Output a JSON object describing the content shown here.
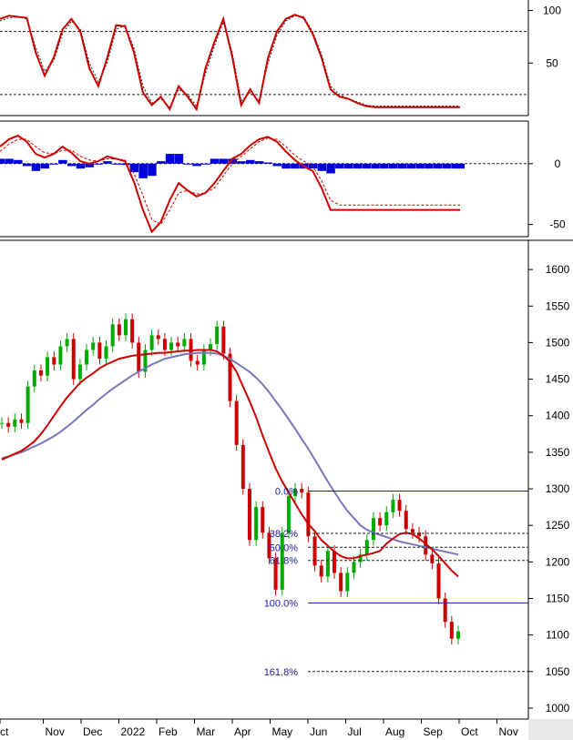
{
  "chart_data": [
    {
      "panel": "stochastic",
      "type": "line",
      "ylim": [
        0,
        110
      ],
      "yticks": [
        50,
        100
      ],
      "reference_lines": [
        20,
        80
      ],
      "colors": {
        "main": "#cc0000",
        "signal": "#222222"
      },
      "x": [
        0,
        4,
        8,
        12,
        16,
        20,
        24,
        28,
        32,
        36,
        40,
        44,
        48,
        52,
        56,
        60,
        64,
        68,
        72,
        76,
        80,
        84,
        88,
        92,
        96,
        100,
        104,
        108,
        112,
        116,
        120,
        124,
        128,
        132,
        136,
        140,
        144,
        148,
        152,
        156,
        160,
        164,
        168,
        172,
        176,
        180,
        184,
        188,
        192,
        196,
        200,
        204,
        206
      ],
      "values": [
        92,
        95,
        94,
        93,
        60,
        38,
        55,
        82,
        92,
        80,
        45,
        28,
        55,
        86,
        85,
        60,
        22,
        10,
        18,
        6,
        28,
        18,
        6,
        45,
        70,
        92,
        56,
        10,
        25,
        12,
        55,
        80,
        92,
        96,
        93,
        78,
        55,
        25,
        18,
        16,
        12,
        9,
        8,
        8,
        8,
        8,
        8,
        8,
        8,
        8,
        8,
        8,
        8
      ],
      "signal": [
        90,
        93,
        94,
        92,
        65,
        42,
        52,
        78,
        90,
        82,
        50,
        32,
        50,
        82,
        86,
        64,
        28,
        12,
        16,
        8,
        25,
        20,
        9,
        40,
        66,
        89,
        60,
        14,
        22,
        14,
        50,
        76,
        90,
        95,
        94,
        80,
        58,
        28,
        20,
        16,
        13,
        10,
        9,
        9,
        9,
        9,
        9,
        9,
        9,
        9,
        9,
        9,
        9
      ]
    },
    {
      "panel": "macd",
      "type": "line",
      "ylim": [
        -60,
        35
      ],
      "yticks": [
        0,
        -50
      ],
      "colors": {
        "macd": "#cc0000",
        "signal": "#cc0000",
        "histogram": "#0000dd"
      },
      "x": [
        0,
        4,
        8,
        12,
        16,
        20,
        24,
        28,
        32,
        36,
        40,
        44,
        48,
        52,
        56,
        60,
        64,
        68,
        72,
        76,
        80,
        84,
        88,
        92,
        96,
        100,
        104,
        108,
        112,
        116,
        120,
        124,
        128,
        132,
        136,
        140,
        144,
        148,
        152,
        156,
        160,
        164,
        168,
        172,
        176,
        180,
        184,
        188,
        192,
        196,
        200,
        204,
        206
      ],
      "macd": [
        14,
        20,
        23,
        18,
        8,
        5,
        8,
        14,
        9,
        2,
        0,
        2,
        6,
        4,
        2,
        -15,
        -38,
        -56,
        -48,
        -30,
        -16,
        -22,
        -27,
        -24,
        -16,
        -6,
        4,
        8,
        15,
        20,
        22,
        18,
        10,
        3,
        -2,
        -6,
        -20,
        -38,
        -38,
        -38,
        -38,
        -38,
        -38,
        -38,
        -38,
        -38,
        -38,
        -38,
        -38,
        -38,
        -38,
        -38,
        -38
      ],
      "signal": [
        10,
        16,
        20,
        20,
        14,
        9,
        8,
        11,
        11,
        6,
        3,
        2,
        4,
        4,
        3,
        -8,
        -26,
        -46,
        -50,
        -38,
        -24,
        -22,
        -25,
        -24,
        -20,
        -10,
        0,
        6,
        12,
        18,
        21,
        20,
        14,
        7,
        2,
        -2,
        -14,
        -30,
        -34,
        -34,
        -34,
        -34,
        -34,
        -34,
        -34,
        -34,
        -34,
        -34,
        -34,
        -34,
        -34,
        -34,
        -34
      ],
      "histogram": [
        4,
        4,
        3,
        -2,
        -6,
        -4,
        0,
        3,
        -2,
        -4,
        -3,
        0,
        2,
        0,
        -1,
        -7,
        -12,
        -10,
        2,
        8,
        8,
        0,
        -2,
        0,
        4,
        4,
        4,
        2,
        3,
        2,
        1,
        -2,
        -4,
        -4,
        -4,
        -4,
        -6,
        -8,
        -4,
        -4,
        -4,
        -4,
        -4,
        -4,
        -4,
        -4,
        -4,
        -4,
        -4,
        -4,
        -4,
        -4,
        -4
      ]
    },
    {
      "panel": "price",
      "type": "candlestick",
      "ylim": [
        985,
        1640
      ],
      "yticks": [
        1000,
        1050,
        1100,
        1150,
        1200,
        1250,
        1300,
        1350,
        1400,
        1450,
        1500,
        1550,
        1600
      ],
      "xticks": [
        "ct",
        "Nov",
        "Dec",
        "2022",
        "Feb",
        "Mar",
        "Apr",
        "May",
        "Jun",
        "Jul",
        "Aug",
        "Sep",
        "Oct",
        "Nov"
      ],
      "colors": {
        "up": "#00aa00",
        "down": "#cc0000",
        "ma_fast": "#cc0000",
        "ma_slow": "#7777bb",
        "fib": "#1a1aa0"
      },
      "closes": [
        1390,
        1385,
        1395,
        1390,
        1440,
        1462,
        1455,
        1480,
        1470,
        1495,
        1505,
        1450,
        1470,
        1490,
        1500,
        1478,
        1495,
        1525,
        1510,
        1532,
        1500,
        1460,
        1490,
        1510,
        1505,
        1490,
        1500,
        1495,
        1505,
        1475,
        1470,
        1490,
        1498,
        1522,
        1485,
        1420,
        1360,
        1300,
        1230,
        1275,
        1240,
        1205,
        1162,
        1240,
        1290,
        1300,
        1295,
        1235,
        1195,
        1180,
        1215,
        1185,
        1160,
        1185,
        1200,
        1210,
        1230,
        1260,
        1250,
        1268,
        1285,
        1270,
        1245,
        1240,
        1235,
        1210,
        1198,
        1150,
        1118,
        1095,
        1105
      ],
      "ma_fast": [
        1340,
        1344,
        1348,
        1352,
        1358,
        1365,
        1375,
        1387,
        1400,
        1413,
        1425,
        1435,
        1445,
        1452,
        1458,
        1465,
        1470,
        1474,
        1478,
        1480,
        1482,
        1483,
        1484,
        1485,
        1486,
        1486,
        1487,
        1488,
        1489,
        1489,
        1490,
        1490,
        1490,
        1488,
        1482,
        1474,
        1460,
        1440,
        1420,
        1398,
        1373,
        1350,
        1328,
        1310,
        1295,
        1280,
        1265,
        1252,
        1242,
        1230,
        1222,
        1214,
        1208,
        1205,
        1205,
        1208,
        1210,
        1212,
        1215,
        1225,
        1232,
        1238,
        1240,
        1238,
        1232,
        1225,
        1217,
        1208,
        1198,
        1188,
        1180
      ],
      "ma_slow": [
        1342,
        1344,
        1347,
        1350,
        1354,
        1358,
        1362,
        1367,
        1372,
        1378,
        1385,
        1392,
        1400,
        1408,
        1415,
        1423,
        1430,
        1437,
        1443,
        1449,
        1455,
        1460,
        1465,
        1470,
        1474,
        1478,
        1480,
        1482,
        1484,
        1485,
        1486,
        1486,
        1486,
        1485,
        1482,
        1478,
        1472,
        1466,
        1460,
        1452,
        1443,
        1432,
        1420,
        1408,
        1395,
        1382,
        1368,
        1355,
        1340,
        1325,
        1310,
        1296,
        1282,
        1270,
        1260,
        1250,
        1244,
        1240,
        1237,
        1234,
        1231,
        1228,
        1226,
        1224,
        1222,
        1220,
        1218,
        1216,
        1214,
        1212,
        1210
      ],
      "fib_levels": [
        {
          "label": "0.0%",
          "value": 1297
        },
        {
          "label": "38.2%",
          "value": 1239
        },
        {
          "label": "50.0%",
          "value": 1220
        },
        {
          "label": "61.8%",
          "value": 1202
        },
        {
          "label": "100.0%",
          "value": 1144
        },
        {
          "label": "161.8%",
          "value": 1050
        }
      ]
    }
  ]
}
